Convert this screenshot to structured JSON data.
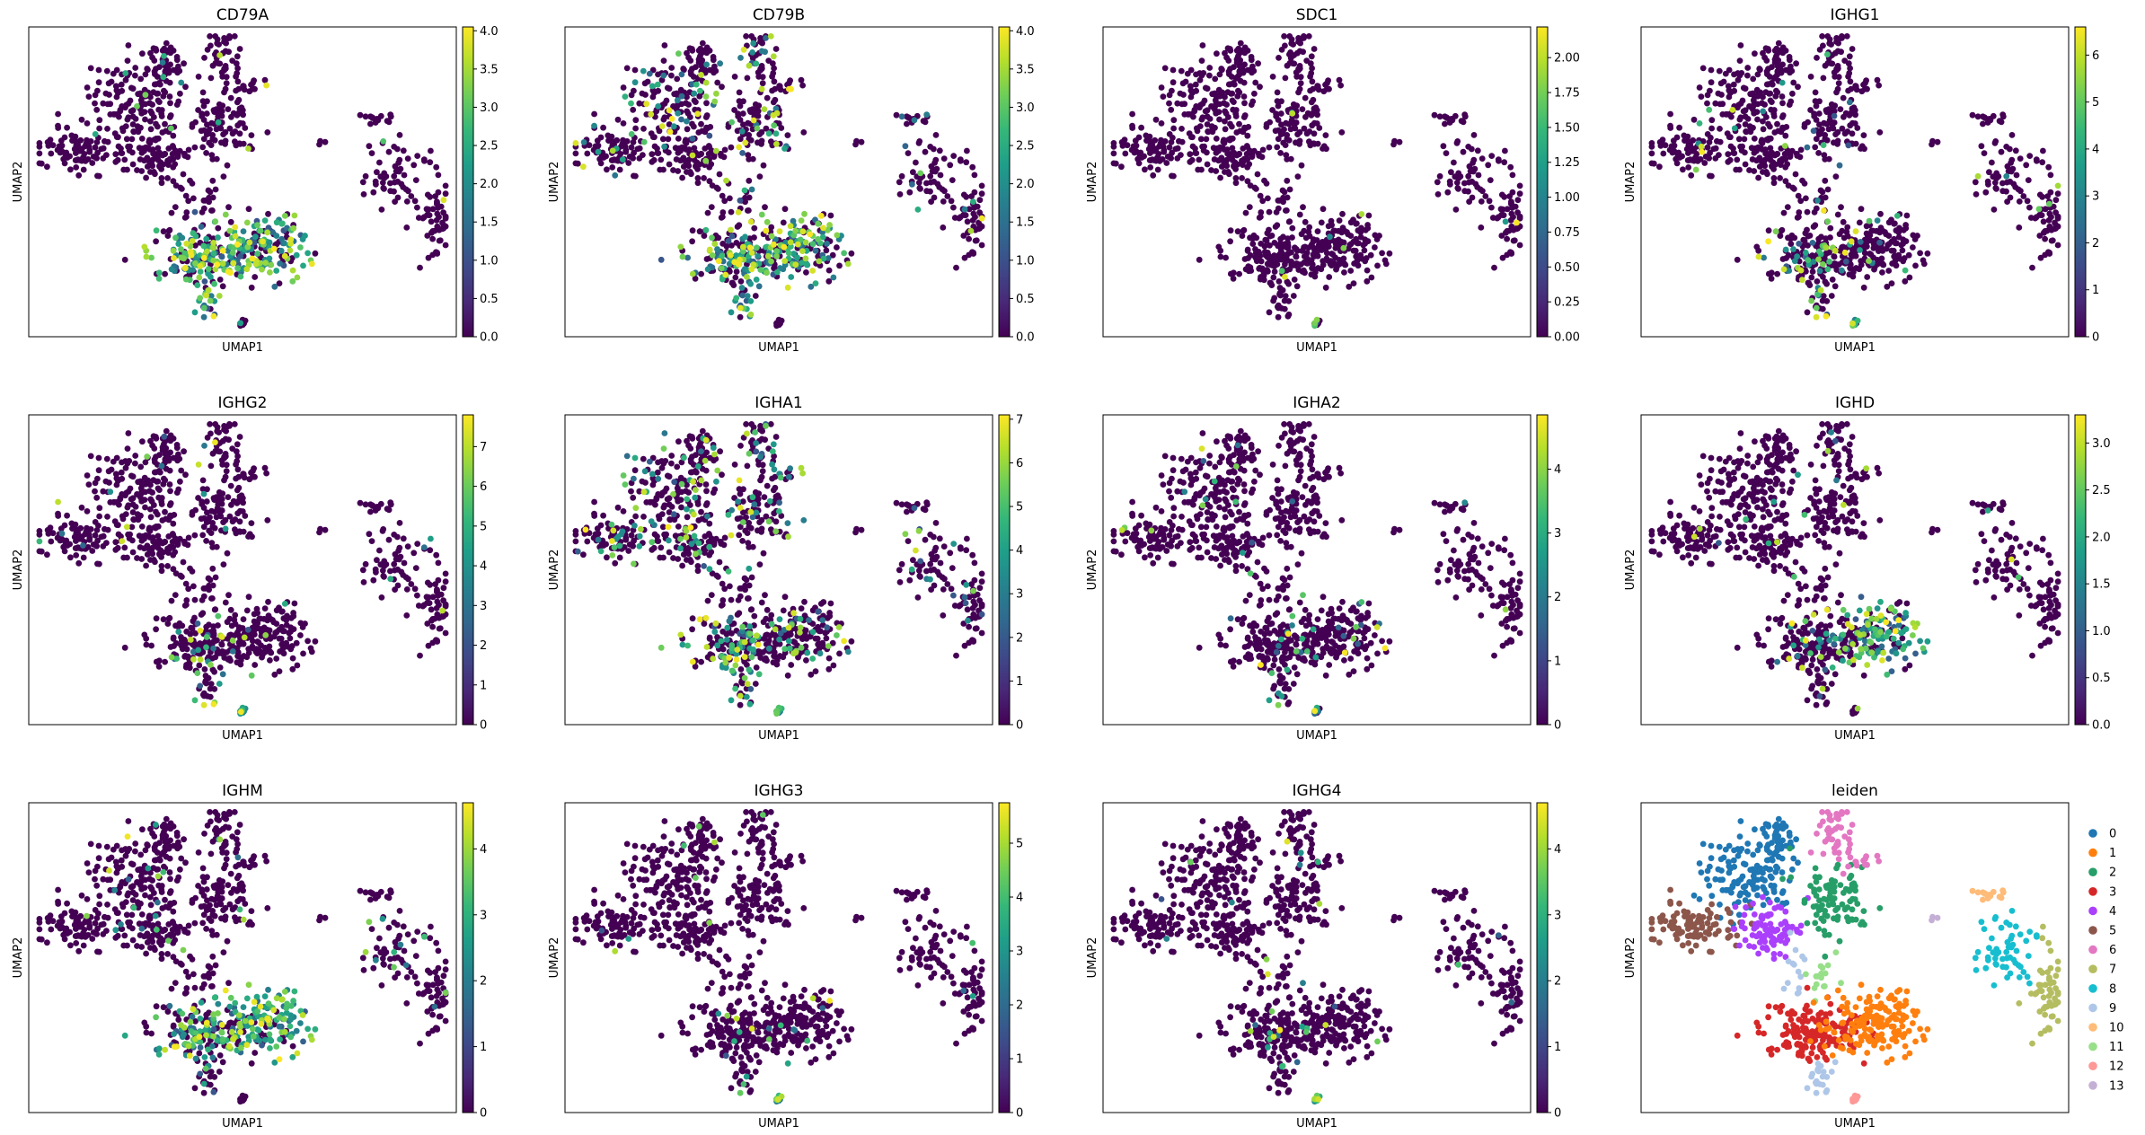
{
  "figure": {
    "xlabel": "UMAP1",
    "ylabel": "UMAP2"
  },
  "chart_data": [
    {
      "type": "scatter",
      "title": "CD79A",
      "xlabel": "UMAP1",
      "ylabel": "UMAP2",
      "colorscale": "viridis",
      "colorbar_range": [
        0,
        4.05
      ],
      "colorbar_ticks": [
        "0.0",
        "0.5",
        "1.0",
        "1.5",
        "2.0",
        "2.5",
        "3.0",
        "3.5",
        "4.0"
      ],
      "expression": {
        "b_left": 0.72,
        "b_right": 0.72,
        "b_tail": 0.85,
        "dot": 0.05,
        "small": 0.03,
        "other": 0.02
      }
    },
    {
      "type": "scatter",
      "title": "CD79B",
      "xlabel": "UMAP1",
      "ylabel": "UMAP2",
      "colorscale": "viridis",
      "colorbar_range": [
        0,
        4.05
      ],
      "colorbar_ticks": [
        "0.0",
        "0.5",
        "1.0",
        "1.5",
        "2.0",
        "2.5",
        "3.0",
        "3.5",
        "4.0"
      ],
      "expression": {
        "b_left": 0.55,
        "b_right": 0.6,
        "b_tail": 0.7,
        "dot": 0.15,
        "small": 0.05,
        "other": 0.15
      }
    },
    {
      "type": "scatter",
      "title": "SDC1",
      "xlabel": "UMAP1",
      "ylabel": "UMAP2",
      "colorscale": "viridis",
      "colorbar_range": [
        0,
        2.22
      ],
      "colorbar_ticks": [
        "0.00",
        "0.25",
        "0.50",
        "0.75",
        "1.00",
        "1.25",
        "1.50",
        "1.75",
        "2.00"
      ],
      "expression": {
        "b_left": 0.02,
        "b_right": 0.02,
        "b_tail": 0.02,
        "dot": 0.3,
        "small": 0.02,
        "other": 0.01
      }
    },
    {
      "type": "scatter",
      "title": "IGHG1",
      "xlabel": "UMAP1",
      "ylabel": "UMAP2",
      "colorscale": "viridis",
      "colorbar_range": [
        0,
        6.6
      ],
      "colorbar_ticks": [
        "0",
        "1",
        "2",
        "3",
        "4",
        "5",
        "6"
      ],
      "expression": {
        "b_left": 0.2,
        "b_right": 0.05,
        "b_tail": 0.3,
        "dot": 0.9,
        "small": 0.03,
        "other": 0.03
      }
    },
    {
      "type": "scatter",
      "title": "IGHG2",
      "xlabel": "UMAP1",
      "ylabel": "UMAP2",
      "colorscale": "viridis",
      "colorbar_range": [
        0,
        7.8
      ],
      "colorbar_ticks": [
        "0",
        "1",
        "2",
        "3",
        "4",
        "5",
        "6",
        "7"
      ],
      "expression": {
        "b_left": 0.12,
        "b_right": 0.04,
        "b_tail": 0.2,
        "dot": 0.75,
        "small": 0.02,
        "other": 0.02
      }
    },
    {
      "type": "scatter",
      "title": "IGHA1",
      "xlabel": "UMAP1",
      "ylabel": "UMAP2",
      "colorscale": "viridis",
      "colorbar_range": [
        0,
        7.1
      ],
      "colorbar_ticks": [
        "0",
        "1",
        "2",
        "3",
        "4",
        "5",
        "6",
        "7"
      ],
      "expression": {
        "b_left": 0.3,
        "b_right": 0.22,
        "b_tail": 0.3,
        "dot": 0.95,
        "small": 0.15,
        "other": 0.22
      }
    },
    {
      "type": "scatter",
      "title": "IGHA2",
      "xlabel": "UMAP1",
      "ylabel": "UMAP2",
      "colorscale": "viridis",
      "colorbar_range": [
        0,
        4.85
      ],
      "colorbar_ticks": [
        "0",
        "1",
        "2",
        "3",
        "4"
      ],
      "expression": {
        "b_left": 0.12,
        "b_right": 0.05,
        "b_tail": 0.1,
        "dot": 0.6,
        "small": 0.03,
        "other": 0.03
      }
    },
    {
      "type": "scatter",
      "title": "IGHD",
      "xlabel": "UMAP1",
      "ylabel": "UMAP2",
      "colorscale": "viridis",
      "colorbar_range": [
        0,
        3.3
      ],
      "colorbar_ticks": [
        "0.0",
        "0.5",
        "1.0",
        "1.5",
        "2.0",
        "2.5",
        "3.0"
      ],
      "expression": {
        "b_left": 0.1,
        "b_right": 0.75,
        "b_tail": 0.1,
        "dot": 0.05,
        "small": 0.02,
        "other": 0.02
      }
    },
    {
      "type": "scatter",
      "title": "IGHM",
      "xlabel": "UMAP1",
      "ylabel": "UMAP2",
      "colorscale": "viridis",
      "colorbar_range": [
        0,
        4.7
      ],
      "colorbar_ticks": [
        "0",
        "1",
        "2",
        "3",
        "4"
      ],
      "expression": {
        "b_left": 0.5,
        "b_right": 0.82,
        "b_tail": 0.4,
        "dot": 0.1,
        "small": 0.1,
        "other": 0.03
      }
    },
    {
      "type": "scatter",
      "title": "IGHG3",
      "xlabel": "UMAP1",
      "ylabel": "UMAP2",
      "colorscale": "viridis",
      "colorbar_range": [
        0,
        5.75
      ],
      "colorbar_ticks": [
        "0",
        "1",
        "2",
        "3",
        "4",
        "5"
      ],
      "expression": {
        "b_left": 0.08,
        "b_right": 0.04,
        "b_tail": 0.1,
        "dot": 0.9,
        "small": 0.03,
        "other": 0.02
      }
    },
    {
      "type": "scatter",
      "title": "IGHG4",
      "xlabel": "UMAP1",
      "ylabel": "UMAP2",
      "colorscale": "viridis",
      "colorbar_range": [
        0,
        4.7
      ],
      "colorbar_ticks": [
        "0",
        "1",
        "2",
        "3",
        "4"
      ],
      "expression": {
        "b_left": 0.08,
        "b_right": 0.04,
        "b_tail": 0.1,
        "dot": 0.85,
        "small": 0.03,
        "other": 0.02
      }
    },
    {
      "type": "scatter",
      "title": "leiden",
      "xlabel": "UMAP1",
      "ylabel": "UMAP2",
      "legend_placement": "right",
      "legend": [
        {
          "label": "0",
          "color": "#1f77b4"
        },
        {
          "label": "1",
          "color": "#ff7f0e"
        },
        {
          "label": "2",
          "color": "#279e68"
        },
        {
          "label": "3",
          "color": "#d62728"
        },
        {
          "label": "4",
          "color": "#aa40fc"
        },
        {
          "label": "5",
          "color": "#8c564b"
        },
        {
          "label": "6",
          "color": "#e377c2"
        },
        {
          "label": "7",
          "color": "#b5bd61"
        },
        {
          "label": "8",
          "color": "#17becf"
        },
        {
          "label": "9",
          "color": "#aec7e8"
        },
        {
          "label": "10",
          "color": "#ffbb78"
        },
        {
          "label": "11",
          "color": "#98df8a"
        },
        {
          "label": "12",
          "color": "#ff9896"
        },
        {
          "label": "13",
          "color": "#c5b0d5"
        }
      ]
    }
  ]
}
